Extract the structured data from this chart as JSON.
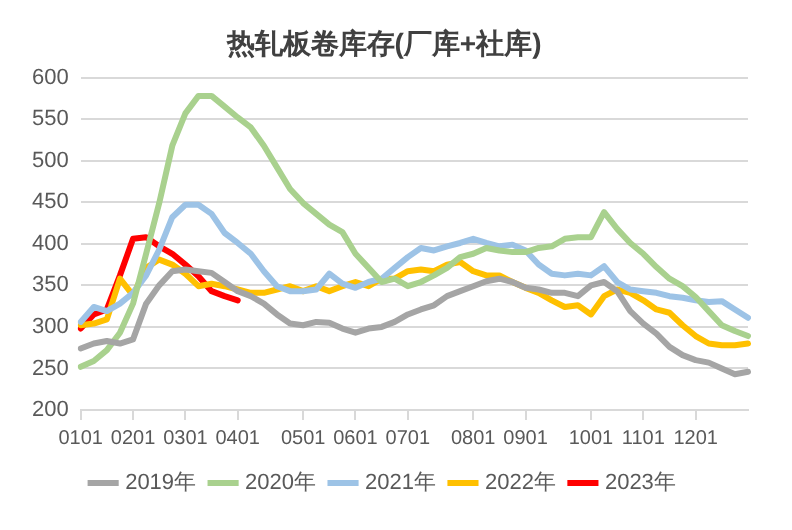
{
  "chart_data": {
    "type": "line",
    "title": "热轧板卷库存(厂库+社库)",
    "categories": [
      "0101",
      null,
      null,
      null,
      "0201",
      null,
      null,
      null,
      "0301",
      null,
      null,
      null,
      "0401",
      null,
      null,
      null,
      null,
      "0501",
      null,
      null,
      null,
      "0601",
      null,
      null,
      null,
      "0701",
      null,
      null,
      null,
      null,
      "0801",
      null,
      null,
      null,
      "0901",
      null,
      null,
      null,
      null,
      "1001",
      null,
      null,
      null,
      "1101",
      null,
      null,
      null,
      "1201",
      null,
      null,
      null,
      null
    ],
    "series": [
      {
        "name": "2019年",
        "color": "#a5a5a5",
        "values": [
          274,
          280,
          283,
          280,
          285,
          328,
          350,
          367,
          369,
          367,
          365,
          354,
          343,
          337,
          328,
          315,
          304,
          302,
          306,
          305,
          298,
          293,
          298,
          300,
          306,
          315,
          321,
          326,
          337,
          343,
          349,
          355,
          358,
          354,
          347,
          345,
          341,
          341,
          337,
          350,
          354,
          343,
          319,
          304,
          292,
          276,
          266,
          260,
          257,
          250,
          243,
          246
        ]
      },
      {
        "name": "2020年",
        "color": "#a9d18e",
        "values": [
          252,
          259,
          272,
          293,
          328,
          388,
          449,
          518,
          557,
          578,
          578,
          565,
          552,
          540,
          518,
          492,
          466,
          449,
          436,
          423,
          414,
          388,
          371,
          354,
          358,
          349,
          354,
          362,
          371,
          384,
          388,
          395,
          392,
          390,
          390,
          395,
          397,
          406,
          408,
          408,
          438,
          418,
          401,
          388,
          372,
          358,
          349,
          336,
          319,
          302,
          295,
          289
        ]
      },
      {
        "name": "2021年",
        "color": "#9dc3e6",
        "values": [
          306,
          324,
          319,
          328,
          341,
          362,
          393,
          432,
          447,
          447,
          436,
          413,
          401,
          388,
          367,
          349,
          343,
          343,
          345,
          364,
          352,
          347,
          354,
          358,
          371,
          384,
          395,
          392,
          397,
          401,
          406,
          401,
          397,
          399,
          392,
          375,
          364,
          362,
          364,
          362,
          373,
          354,
          345,
          343,
          341,
          337,
          335,
          332,
          330,
          331,
          321,
          311
        ]
      },
      {
        "name": "2022年",
        "color": "#ffc000",
        "values": [
          302,
          304,
          309,
          358,
          338,
          371,
          381,
          375,
          364,
          349,
          352,
          349,
          345,
          341,
          341,
          345,
          349,
          343,
          349,
          343,
          349,
          354,
          349,
          358,
          358,
          367,
          369,
          367,
          375,
          378,
          367,
          362,
          362,
          354,
          347,
          341,
          332,
          324,
          326,
          315,
          337,
          345,
          341,
          332,
          321,
          317,
          302,
          289,
          280,
          278,
          278,
          280
        ]
      },
      {
        "name": "2023年",
        "color": "#ff0000",
        "values": [
          298,
          315,
          321,
          362,
          406,
          408,
          397,
          388,
          375,
          361,
          343,
          337,
          332,
          null,
          null,
          null,
          null,
          null,
          null,
          null,
          null,
          null,
          null,
          null,
          null,
          null,
          null,
          null,
          null,
          null,
          null,
          null,
          null,
          null,
          null,
          null,
          null,
          null,
          null,
          null,
          null,
          null,
          null,
          null,
          null,
          null,
          null,
          null,
          null,
          null,
          null,
          null
        ]
      }
    ],
    "ylim": [
      200,
      600
    ],
    "yticks": [
      200,
      250,
      300,
      350,
      400,
      450,
      500,
      550,
      600
    ],
    "grid": "y",
    "legend": "bottom",
    "marker": "none",
    "line_style": "solid"
  }
}
